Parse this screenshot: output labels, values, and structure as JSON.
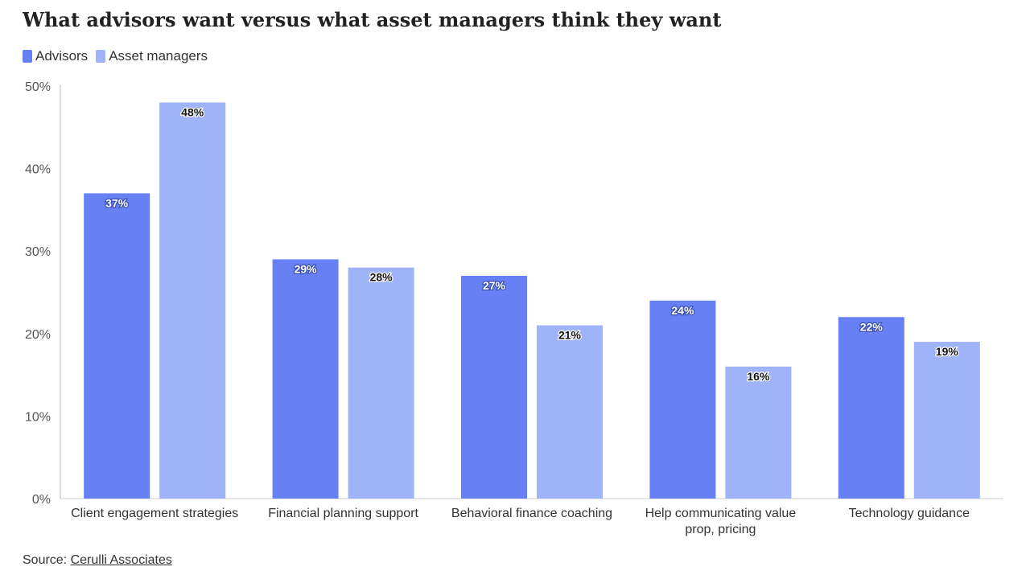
{
  "title": "What advisors want versus what asset managers think they want",
  "legend": {
    "advisors": "Advisors",
    "asset_managers": "Asset managers"
  },
  "colors": {
    "advisors": "#6781f4",
    "asset_managers": "#9fb3f8"
  },
  "source": {
    "label": "Source:",
    "link_text": "Cerulli Associates"
  },
  "chart_data": {
    "type": "bar",
    "categories": [
      [
        "Client engagement strategies"
      ],
      [
        "Financial planning support"
      ],
      [
        "Behavioral finance coaching"
      ],
      [
        "Help communicating value",
        "prop, pricing"
      ],
      [
        "Technology guidance"
      ]
    ],
    "series": [
      {
        "name": "Advisors",
        "values": [
          37,
          29,
          27,
          24,
          22
        ],
        "labels": [
          "37%",
          "29%",
          "27%",
          "24%",
          "22%"
        ]
      },
      {
        "name": "Asset managers",
        "values": [
          48,
          28,
          21,
          16,
          19
        ],
        "labels": [
          "48%",
          "28%",
          "21%",
          "16%",
          "19%"
        ]
      }
    ],
    "ylim": [
      0,
      50
    ],
    "yticks": [
      "0%",
      "10%",
      "20%",
      "30%",
      "40%",
      "50%"
    ],
    "grid": false,
    "legend_position": "top-left"
  }
}
